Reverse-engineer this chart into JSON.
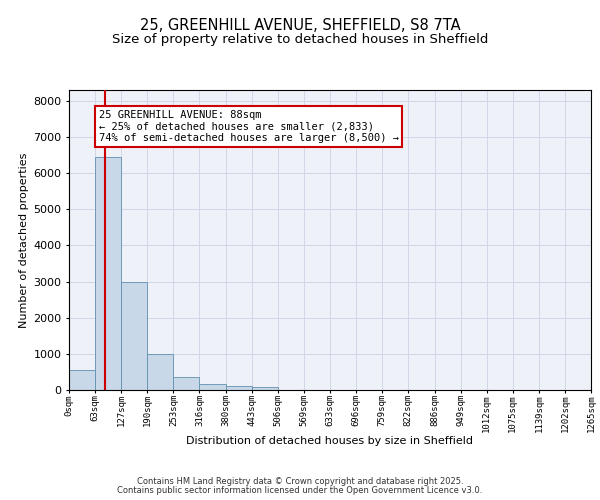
{
  "title1": "25, GREENHILL AVENUE, SHEFFIELD, S8 7TA",
  "title2": "Size of property relative to detached houses in Sheffield",
  "xlabel": "Distribution of detached houses by size in Sheffield",
  "ylabel": "Number of detached properties",
  "bar_edges": [
    0,
    63,
    127,
    190,
    253,
    316,
    380,
    443,
    506,
    569,
    633,
    696,
    759,
    822,
    886,
    949,
    1012,
    1075,
    1139,
    1202,
    1265
  ],
  "bar_heights": [
    560,
    6450,
    2980,
    1000,
    360,
    160,
    100,
    75,
    0,
    0,
    0,
    0,
    0,
    0,
    0,
    0,
    0,
    0,
    0,
    0
  ],
  "bar_color": "#c8d8e8",
  "bar_edgecolor": "#6090b0",
  "vline_x": 88,
  "vline_color": "#cc0000",
  "annotation_text_line1": "25 GREENHILL AVENUE: 88sqm",
  "annotation_text_line2": "← 25% of detached houses are smaller (2,833)",
  "annotation_text_line3": "74% of semi-detached houses are larger (8,500) →",
  "annotation_box_color": "#cc0000",
  "ylim": [
    0,
    8300
  ],
  "yticks": [
    0,
    1000,
    2000,
    3000,
    4000,
    5000,
    6000,
    7000,
    8000
  ],
  "tick_labels": [
    "0sqm",
    "63sqm",
    "127sqm",
    "190sqm",
    "253sqm",
    "316sqm",
    "380sqm",
    "443sqm",
    "506sqm",
    "569sqm",
    "633sqm",
    "696sqm",
    "759sqm",
    "822sqm",
    "886sqm",
    "949sqm",
    "1012sqm",
    "1075sqm",
    "1139sqm",
    "1202sqm",
    "1265sqm"
  ],
  "footer1": "Contains HM Land Registry data © Crown copyright and database right 2025.",
  "footer2": "Contains public sector information licensed under the Open Government Licence v3.0.",
  "grid_color": "#d0d8e8",
  "bg_color": "#eef2f8",
  "title_fontsize": 10.5,
  "subtitle_fontsize": 9.5,
  "annotation_fontsize": 7.5,
  "xlabel_fontsize": 8,
  "ylabel_fontsize": 8,
  "ytick_fontsize": 8,
  "xtick_fontsize": 6.5,
  "footer_fontsize": 6
}
